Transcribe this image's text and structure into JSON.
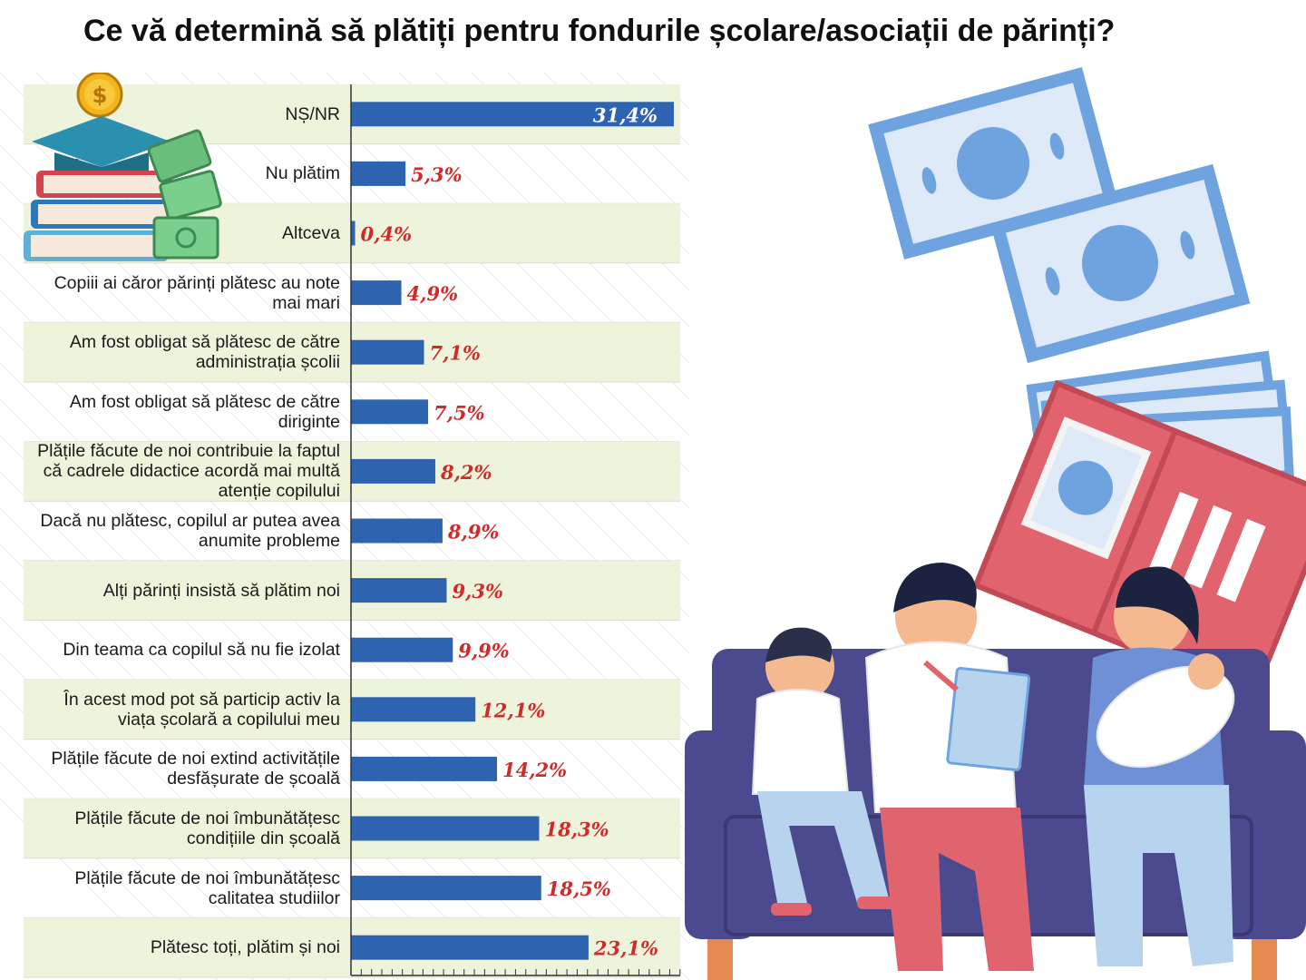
{
  "title": "Ce vă determină să plătiți pentru fondurile școlare/asociații de părinți?",
  "chart_data": {
    "type": "bar",
    "orientation": "horizontal",
    "title": "Ce vă determină să plătiți pentru fondurile școlare/asociații de părinți?",
    "unit": "%",
    "xlim": [
      0,
      32
    ],
    "categories": [
      "NȘ/NR",
      "Nu plătim",
      "Altceva",
      "Copiii ai căror părinți plătesc au note mai mari",
      "Am fost obligat să plătesc de către administrația școlii",
      "Am fost obligat să plătesc de către diriginte",
      "Plățile făcute de noi contribuie la faptul că cadrele didactice acordă mai multă atenție copilului",
      "Dacă nu plătesc, copilul ar putea avea anumite probleme",
      "Alți părinți insistă să plătim noi",
      "Din teama ca copilul să nu fie izolat",
      "În acest mod pot să particip activ la viața școlară a copilului meu",
      "Plățile făcute de noi extind activitățile desfășurate de școală",
      "Plățile făcute de noi îmbunătățesc condițiile din școală",
      "Plățile făcute de noi îmbunătățesc calitatea studiilor",
      "Plătesc toți, plătim și noi"
    ],
    "values": [
      31.4,
      5.3,
      0.4,
      4.9,
      7.1,
      7.5,
      8.2,
      8.9,
      9.3,
      9.9,
      12.1,
      14.2,
      18.3,
      18.5,
      23.1
    ],
    "value_labels": [
      "31,4%",
      "5,3%",
      "0,4%",
      "4,9%",
      "7,1%",
      "7,5%",
      "8,2%",
      "8,9%",
      "9,3%",
      "9,9%",
      "12,1%",
      "14,2%",
      "18,3%",
      "18,5%",
      "23,1%"
    ],
    "bar_color": "#2e63b0",
    "label_color": "#d12a2a",
    "band_color": "#eef4dc"
  },
  "illustration": {
    "description_icon_names": [
      "books-coin-icon",
      "money-bills-icon",
      "wallet-icon",
      "family-sofa-icon"
    ],
    "colors": {
      "bill": "#6fa3e0",
      "bill_light": "#dfeaf8",
      "wallet": "#e0636e",
      "sofa": "#4b4a8e",
      "pants_red": "#e0636e",
      "shirt_blue": "#6f8fd6",
      "skin": "#f4b98f"
    }
  }
}
